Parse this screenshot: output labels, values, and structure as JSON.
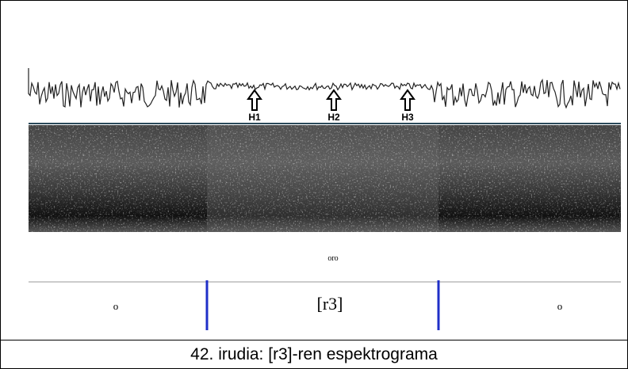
{
  "figure": {
    "arrows": [
      "H1",
      "H2",
      "H3"
    ],
    "transcription": "oro",
    "segments": [
      "o",
      "[r3]",
      "o"
    ]
  },
  "caption": "42. irudia: [r3]-ren espektrograma"
}
